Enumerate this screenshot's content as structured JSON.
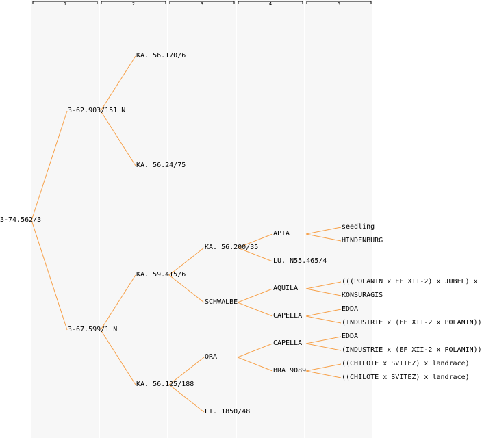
{
  "colors": {
    "edge": "#f7a048",
    "column_bg": "#f7f7f7",
    "bracket": "#000000"
  },
  "columns": [
    "1",
    "2",
    "3",
    "4",
    "5"
  ],
  "tree": {
    "label": "3-74.562/3",
    "children": [
      {
        "label": "3-62.903/151 N",
        "children": [
          {
            "label": "KA. 56.170/6"
          },
          {
            "label": "KA. 56.24/75"
          }
        ]
      },
      {
        "label": "3-67.599/1 N",
        "children": [
          {
            "label": "KA. 59.415/6",
            "children": [
              {
                "label": "KA. 56.200/35",
                "children": [
                  {
                    "label": "APTA",
                    "children": [
                      {
                        "label": "seedling"
                      },
                      {
                        "label": "HINDENBURG"
                      }
                    ]
                  },
                  {
                    "label": "LU. N55.465/4"
                  }
                ]
              },
              {
                "label": "SCHWALBE",
                "children": [
                  {
                    "label": "AQUILA",
                    "children": [
                      {
                        "label": "(((POLANIN x EF XII-2) x JUBEL) x"
                      },
                      {
                        "label": "KONSURAGIS"
                      }
                    ]
                  },
                  {
                    "label": "CAPELLA",
                    "children": [
                      {
                        "label": "EDDA"
                      },
                      {
                        "label": "(INDUSTRIE x (EF XII-2 x POLANIN))"
                      }
                    ]
                  }
                ]
              }
            ]
          },
          {
            "label": "KA. 56.125/188",
            "children": [
              {
                "label": "ORA",
                "children": [
                  {
                    "label": "CAPELLA",
                    "children": [
                      {
                        "label": "EDDA"
                      },
                      {
                        "label": "(INDUSTRIE x (EF XII-2 x POLANIN))"
                      }
                    ]
                  },
                  {
                    "label": "BRA 9089",
                    "children": [
                      {
                        "label": "((CHILOTE x SVITEZ) x landrace)"
                      },
                      {
                        "label": "((CHILOTE x SVITEZ) x landrace)"
                      }
                    ]
                  }
                ]
              },
              {
                "label": "LI. 1850/48"
              }
            ]
          }
        ]
      }
    ]
  }
}
